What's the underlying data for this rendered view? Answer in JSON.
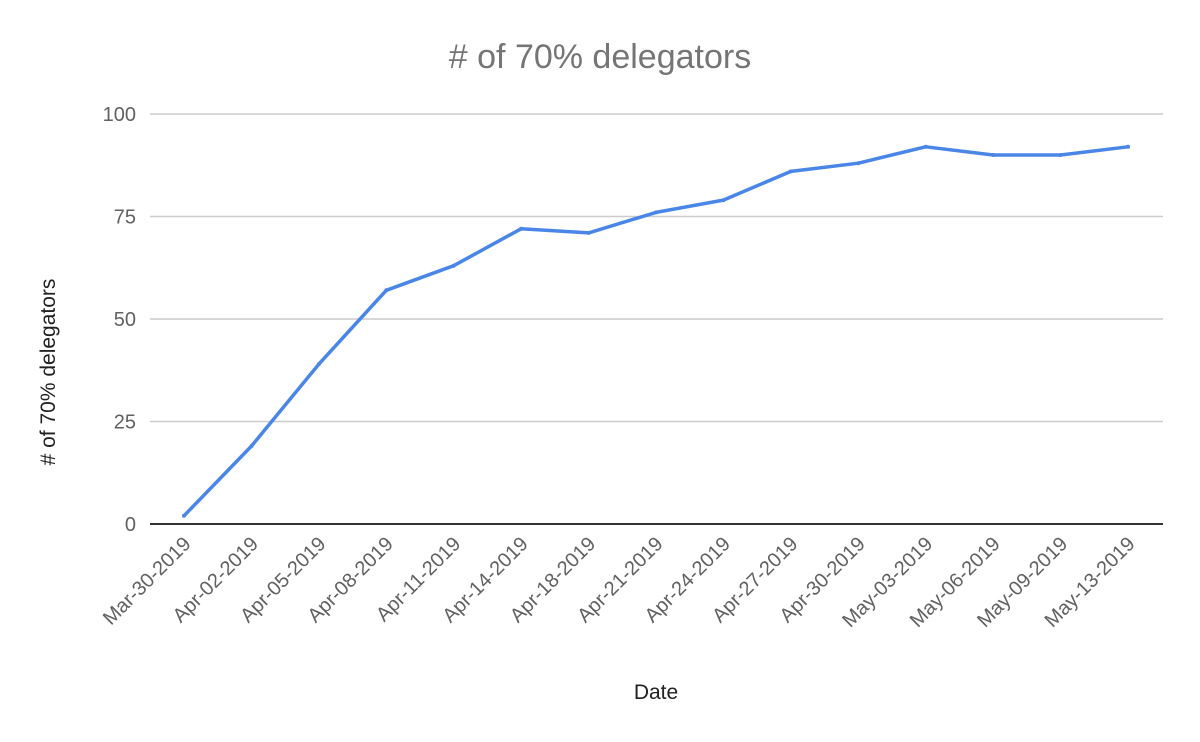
{
  "chart_data": {
    "type": "line",
    "title": "# of 70% delegators",
    "xlabel": "Date",
    "ylabel": "# of 70% delegators",
    "categories": [
      "Mar-30-2019",
      "Apr-02-2019",
      "Apr-05-2019",
      "Apr-08-2019",
      "Apr-11-2019",
      "Apr-14-2019",
      "Apr-18-2019",
      "Apr-21-2019",
      "Apr-24-2019",
      "Apr-27-2019",
      "Apr-30-2019",
      "May-03-2019",
      "May-06-2019",
      "May-09-2019",
      "May-13-2019"
    ],
    "series": [
      {
        "values": [
          2,
          19,
          39,
          57,
          63,
          72,
          71,
          76,
          79,
          86,
          88,
          92,
          90,
          90,
          92
        ],
        "color": "#4a86e8"
      }
    ],
    "ylim": [
      0,
      100
    ],
    "yticks": [
      "0",
      "25",
      "50",
      "75",
      "100"
    ],
    "grid": true,
    "legend": "none"
  }
}
